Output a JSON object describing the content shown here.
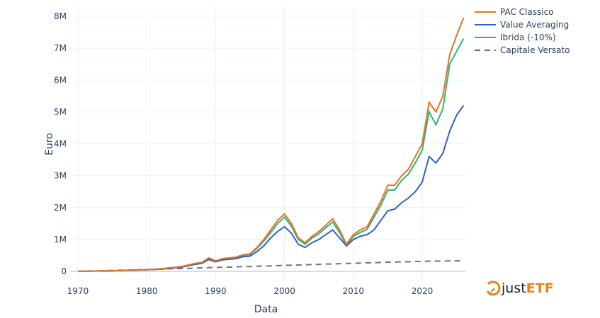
{
  "chart_data": {
    "type": "line",
    "xlabel": "Data",
    "ylabel": "Euro",
    "xlim": [
      1970,
      2026.3
    ],
    "ylim": [
      -0.3,
      8.2
    ],
    "x_ticks": [
      1970,
      1980,
      1990,
      2000,
      2010,
      2020
    ],
    "x_tick_labels": [
      "1970",
      "1980",
      "1990",
      "2000",
      "2010",
      "2020"
    ],
    "y_ticks": [
      0,
      1,
      2,
      3,
      4,
      5,
      6,
      7,
      8
    ],
    "y_tick_labels": [
      "0",
      "1M",
      "2M",
      "3M",
      "4M",
      "5M",
      "6M",
      "7M",
      "8M"
    ],
    "grid": true,
    "legend_position": "top-right",
    "x": [
      1970,
      1975,
      1980,
      1982,
      1985,
      1987,
      1988,
      1989,
      1990,
      1991,
      1993,
      1994,
      1995,
      1996,
      1997,
      1998,
      1999,
      2000,
      2001,
      2002,
      2003,
      2004,
      2005,
      2006,
      2007,
      2008,
      2009,
      2010,
      2011,
      2012,
      2013,
      2014,
      2015,
      2016,
      2017,
      2018,
      2019,
      2020,
      2021,
      2022,
      2023,
      2024,
      2025,
      2026
    ],
    "series": [
      {
        "name": "PAC Classico",
        "color": "#e8731c",
        "dash": false,
        "values": [
          0,
          0.02,
          0.05,
          0.08,
          0.15,
          0.25,
          0.28,
          0.42,
          0.33,
          0.4,
          0.45,
          0.52,
          0.55,
          0.75,
          1.0,
          1.3,
          1.6,
          1.8,
          1.5,
          1.05,
          0.9,
          1.1,
          1.25,
          1.45,
          1.65,
          1.3,
          0.85,
          1.15,
          1.3,
          1.4,
          1.8,
          2.2,
          2.7,
          2.7,
          3.0,
          3.2,
          3.6,
          4.0,
          5.3,
          5.0,
          5.5,
          6.8,
          7.4,
          7.95
        ]
      },
      {
        "name": "Value Averaging",
        "color": "#2f5fcc",
        "dash": false,
        "values": [
          0,
          0.02,
          0.05,
          0.07,
          0.13,
          0.22,
          0.25,
          0.37,
          0.3,
          0.36,
          0.4,
          0.46,
          0.48,
          0.62,
          0.8,
          1.05,
          1.25,
          1.4,
          1.2,
          0.85,
          0.75,
          0.9,
          1.0,
          1.15,
          1.3,
          1.05,
          0.8,
          1.0,
          1.1,
          1.15,
          1.3,
          1.6,
          1.9,
          1.95,
          2.15,
          2.3,
          2.5,
          2.8,
          3.6,
          3.4,
          3.7,
          4.4,
          4.9,
          5.2
        ]
      },
      {
        "name": "Ibrida (-10%)",
        "color": "#2db37a",
        "dash": false,
        "values": [
          0,
          0.02,
          0.05,
          0.08,
          0.14,
          0.24,
          0.27,
          0.4,
          0.32,
          0.39,
          0.44,
          0.5,
          0.53,
          0.72,
          0.95,
          1.22,
          1.5,
          1.7,
          1.42,
          1.0,
          0.85,
          1.05,
          1.18,
          1.37,
          1.55,
          1.22,
          0.82,
          1.1,
          1.22,
          1.32,
          1.7,
          2.08,
          2.55,
          2.55,
          2.85,
          3.05,
          3.4,
          3.8,
          5.0,
          4.6,
          5.1,
          6.5,
          6.9,
          7.3
        ]
      },
      {
        "name": "Capitale Versato",
        "color": "#6b7380",
        "dash": true,
        "values": [
          0,
          0.03,
          0.06,
          0.07,
          0.09,
          0.1,
          0.11,
          0.12,
          0.12,
          0.13,
          0.14,
          0.15,
          0.15,
          0.16,
          0.17,
          0.17,
          0.18,
          0.19,
          0.19,
          0.2,
          0.21,
          0.21,
          0.22,
          0.23,
          0.23,
          0.24,
          0.25,
          0.25,
          0.26,
          0.27,
          0.27,
          0.28,
          0.29,
          0.29,
          0.3,
          0.3,
          0.31,
          0.31,
          0.32,
          0.32,
          0.32,
          0.33,
          0.33,
          0.33
        ]
      }
    ]
  },
  "logo": {
    "text_a": "just",
    "text_b": "ETF"
  }
}
